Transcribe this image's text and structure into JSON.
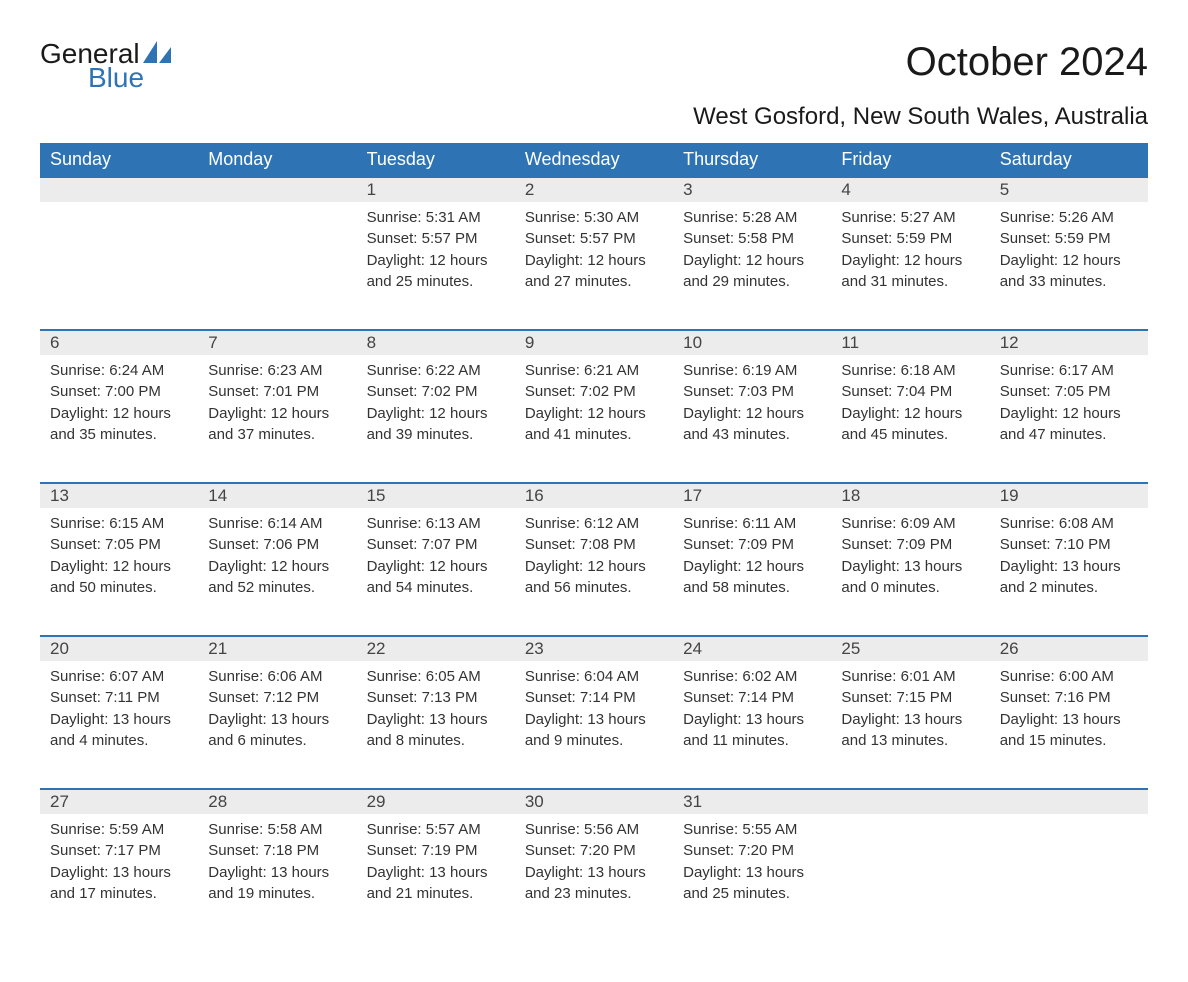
{
  "logo": {
    "text_general": "General",
    "text_blue": "Blue",
    "accent_color": "#2e74b5"
  },
  "header": {
    "month_title": "October 2024",
    "location": "West Gosford, New South Wales, Australia"
  },
  "day_headers": [
    "Sunday",
    "Monday",
    "Tuesday",
    "Wednesday",
    "Thursday",
    "Friday",
    "Saturday"
  ],
  "colors": {
    "header_bg": "#2e74b5",
    "header_text": "#ffffff",
    "daynum_bg": "#ececec",
    "daynum_border": "#2e74b5",
    "body_text": "#333333",
    "title_text": "#1a1a1a"
  },
  "weeks": [
    [
      null,
      null,
      {
        "num": "1",
        "sunrise": "Sunrise: 5:31 AM",
        "sunset": "Sunset: 5:57 PM",
        "daylight1": "Daylight: 12 hours",
        "daylight2": "and 25 minutes."
      },
      {
        "num": "2",
        "sunrise": "Sunrise: 5:30 AM",
        "sunset": "Sunset: 5:57 PM",
        "daylight1": "Daylight: 12 hours",
        "daylight2": "and 27 minutes."
      },
      {
        "num": "3",
        "sunrise": "Sunrise: 5:28 AM",
        "sunset": "Sunset: 5:58 PM",
        "daylight1": "Daylight: 12 hours",
        "daylight2": "and 29 minutes."
      },
      {
        "num": "4",
        "sunrise": "Sunrise: 5:27 AM",
        "sunset": "Sunset: 5:59 PM",
        "daylight1": "Daylight: 12 hours",
        "daylight2": "and 31 minutes."
      },
      {
        "num": "5",
        "sunrise": "Sunrise: 5:26 AM",
        "sunset": "Sunset: 5:59 PM",
        "daylight1": "Daylight: 12 hours",
        "daylight2": "and 33 minutes."
      }
    ],
    [
      {
        "num": "6",
        "sunrise": "Sunrise: 6:24 AM",
        "sunset": "Sunset: 7:00 PM",
        "daylight1": "Daylight: 12 hours",
        "daylight2": "and 35 minutes."
      },
      {
        "num": "7",
        "sunrise": "Sunrise: 6:23 AM",
        "sunset": "Sunset: 7:01 PM",
        "daylight1": "Daylight: 12 hours",
        "daylight2": "and 37 minutes."
      },
      {
        "num": "8",
        "sunrise": "Sunrise: 6:22 AM",
        "sunset": "Sunset: 7:02 PM",
        "daylight1": "Daylight: 12 hours",
        "daylight2": "and 39 minutes."
      },
      {
        "num": "9",
        "sunrise": "Sunrise: 6:21 AM",
        "sunset": "Sunset: 7:02 PM",
        "daylight1": "Daylight: 12 hours",
        "daylight2": "and 41 minutes."
      },
      {
        "num": "10",
        "sunrise": "Sunrise: 6:19 AM",
        "sunset": "Sunset: 7:03 PM",
        "daylight1": "Daylight: 12 hours",
        "daylight2": "and 43 minutes."
      },
      {
        "num": "11",
        "sunrise": "Sunrise: 6:18 AM",
        "sunset": "Sunset: 7:04 PM",
        "daylight1": "Daylight: 12 hours",
        "daylight2": "and 45 minutes."
      },
      {
        "num": "12",
        "sunrise": "Sunrise: 6:17 AM",
        "sunset": "Sunset: 7:05 PM",
        "daylight1": "Daylight: 12 hours",
        "daylight2": "and 47 minutes."
      }
    ],
    [
      {
        "num": "13",
        "sunrise": "Sunrise: 6:15 AM",
        "sunset": "Sunset: 7:05 PM",
        "daylight1": "Daylight: 12 hours",
        "daylight2": "and 50 minutes."
      },
      {
        "num": "14",
        "sunrise": "Sunrise: 6:14 AM",
        "sunset": "Sunset: 7:06 PM",
        "daylight1": "Daylight: 12 hours",
        "daylight2": "and 52 minutes."
      },
      {
        "num": "15",
        "sunrise": "Sunrise: 6:13 AM",
        "sunset": "Sunset: 7:07 PM",
        "daylight1": "Daylight: 12 hours",
        "daylight2": "and 54 minutes."
      },
      {
        "num": "16",
        "sunrise": "Sunrise: 6:12 AM",
        "sunset": "Sunset: 7:08 PM",
        "daylight1": "Daylight: 12 hours",
        "daylight2": "and 56 minutes."
      },
      {
        "num": "17",
        "sunrise": "Sunrise: 6:11 AM",
        "sunset": "Sunset: 7:09 PM",
        "daylight1": "Daylight: 12 hours",
        "daylight2": "and 58 minutes."
      },
      {
        "num": "18",
        "sunrise": "Sunrise: 6:09 AM",
        "sunset": "Sunset: 7:09 PM",
        "daylight1": "Daylight: 13 hours",
        "daylight2": "and 0 minutes."
      },
      {
        "num": "19",
        "sunrise": "Sunrise: 6:08 AM",
        "sunset": "Sunset: 7:10 PM",
        "daylight1": "Daylight: 13 hours",
        "daylight2": "and 2 minutes."
      }
    ],
    [
      {
        "num": "20",
        "sunrise": "Sunrise: 6:07 AM",
        "sunset": "Sunset: 7:11 PM",
        "daylight1": "Daylight: 13 hours",
        "daylight2": "and 4 minutes."
      },
      {
        "num": "21",
        "sunrise": "Sunrise: 6:06 AM",
        "sunset": "Sunset: 7:12 PM",
        "daylight1": "Daylight: 13 hours",
        "daylight2": "and 6 minutes."
      },
      {
        "num": "22",
        "sunrise": "Sunrise: 6:05 AM",
        "sunset": "Sunset: 7:13 PM",
        "daylight1": "Daylight: 13 hours",
        "daylight2": "and 8 minutes."
      },
      {
        "num": "23",
        "sunrise": "Sunrise: 6:04 AM",
        "sunset": "Sunset: 7:14 PM",
        "daylight1": "Daylight: 13 hours",
        "daylight2": "and 9 minutes."
      },
      {
        "num": "24",
        "sunrise": "Sunrise: 6:02 AM",
        "sunset": "Sunset: 7:14 PM",
        "daylight1": "Daylight: 13 hours",
        "daylight2": "and 11 minutes."
      },
      {
        "num": "25",
        "sunrise": "Sunrise: 6:01 AM",
        "sunset": "Sunset: 7:15 PM",
        "daylight1": "Daylight: 13 hours",
        "daylight2": "and 13 minutes."
      },
      {
        "num": "26",
        "sunrise": "Sunrise: 6:00 AM",
        "sunset": "Sunset: 7:16 PM",
        "daylight1": "Daylight: 13 hours",
        "daylight2": "and 15 minutes."
      }
    ],
    [
      {
        "num": "27",
        "sunrise": "Sunrise: 5:59 AM",
        "sunset": "Sunset: 7:17 PM",
        "daylight1": "Daylight: 13 hours",
        "daylight2": "and 17 minutes."
      },
      {
        "num": "28",
        "sunrise": "Sunrise: 5:58 AM",
        "sunset": "Sunset: 7:18 PM",
        "daylight1": "Daylight: 13 hours",
        "daylight2": "and 19 minutes."
      },
      {
        "num": "29",
        "sunrise": "Sunrise: 5:57 AM",
        "sunset": "Sunset: 7:19 PM",
        "daylight1": "Daylight: 13 hours",
        "daylight2": "and 21 minutes."
      },
      {
        "num": "30",
        "sunrise": "Sunrise: 5:56 AM",
        "sunset": "Sunset: 7:20 PM",
        "daylight1": "Daylight: 13 hours",
        "daylight2": "and 23 minutes."
      },
      {
        "num": "31",
        "sunrise": "Sunrise: 5:55 AM",
        "sunset": "Sunset: 7:20 PM",
        "daylight1": "Daylight: 13 hours",
        "daylight2": "and 25 minutes."
      },
      null,
      null
    ]
  ]
}
